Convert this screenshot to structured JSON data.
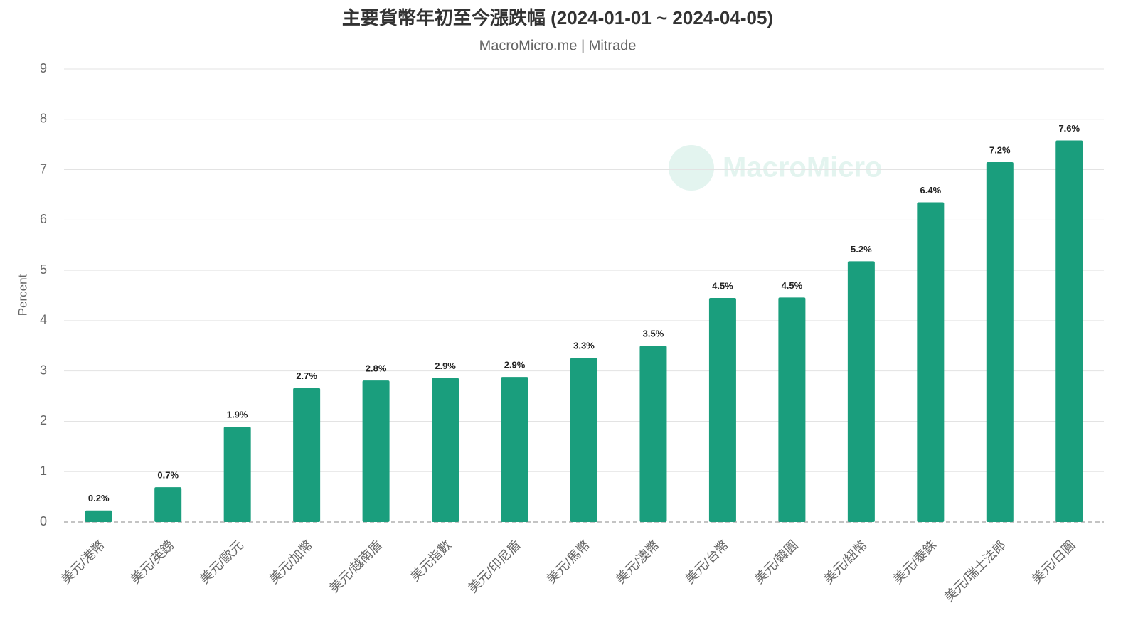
{
  "chart_data": {
    "type": "bar",
    "title": "主要貨幣年初至今漲跌幅 (2024-01-01 ~ 2024-04-05)",
    "subtitle": "MacroMicro.me | Mitrade",
    "watermark": "MacroMicro",
    "y_label": "Percent",
    "categories": [
      "美元/港幣",
      "美元/英鎊",
      "美元/歐元",
      "美元/加幣",
      "美元/越南盾",
      "美元指數",
      "美元/印尼盾",
      "美元/馬幣",
      "美元/澳幣",
      "美元/台幣",
      "美元/韓圓",
      "美元/紐幣",
      "美元/泰銖",
      "美元/瑞士法郎",
      "美元/日圓"
    ],
    "values": [
      0.23,
      0.69,
      1.89,
      2.66,
      2.81,
      2.86,
      2.88,
      3.26,
      3.5,
      4.45,
      4.46,
      5.18,
      6.35,
      7.15,
      7.58
    ],
    "value_labels": [
      "0.2%",
      "0.7%",
      "1.9%",
      "2.7%",
      "2.8%",
      "2.9%",
      "2.9%",
      "3.3%",
      "3.5%",
      "4.5%",
      "4.5%",
      "5.2%",
      "6.4%",
      "7.2%",
      "7.6%"
    ],
    "color": "#1a9e7d",
    "ylim": [
      0,
      9
    ],
    "yticks": [
      0,
      1,
      2,
      3,
      4,
      5,
      6,
      7,
      8,
      9
    ],
    "grid": true
  }
}
